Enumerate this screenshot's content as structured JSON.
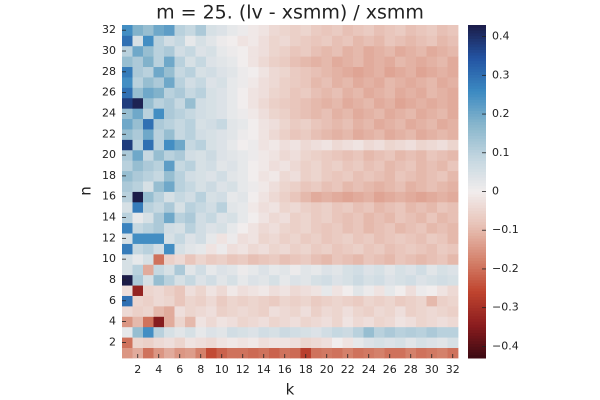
{
  "chart_data": {
    "type": "heatmap",
    "title": "m = 25. (lv - xsmm) / xsmm",
    "x_label": "k",
    "y_label": "n",
    "x": [
      1,
      2,
      3,
      4,
      5,
      6,
      7,
      8,
      9,
      10,
      11,
      12,
      13,
      14,
      15,
      16,
      17,
      18,
      19,
      20,
      21,
      22,
      23,
      24,
      25,
      26,
      27,
      28,
      29,
      30,
      31,
      32
    ],
    "y": [
      1,
      2,
      3,
      4,
      5,
      6,
      7,
      8,
      9,
      10,
      11,
      12,
      13,
      14,
      15,
      16,
      17,
      18,
      19,
      20,
      21,
      22,
      23,
      24,
      25,
      26,
      27,
      28,
      29,
      30,
      31,
      32
    ],
    "z": [
      [
        -0.15,
        -0.12,
        -0.2,
        -0.15,
        -0.12,
        -0.15,
        -0.14,
        -0.18,
        -0.25,
        -0.22,
        -0.2,
        -0.2,
        -0.21,
        -0.2,
        -0.22,
        -0.2,
        -0.21,
        -0.27,
        -0.2,
        -0.19,
        -0.2,
        -0.18,
        -0.2,
        -0.19,
        -0.18,
        -0.2,
        -0.2,
        -0.18,
        -0.2,
        -0.19,
        -0.18,
        -0.2
      ],
      [
        -0.2,
        -0.05,
        -0.06,
        -0.04,
        -0.03,
        -0.05,
        -0.02,
        -0.03,
        -0.04,
        -0.02,
        -0.01,
        -0.02,
        -0.01,
        -0.03,
        -0.02,
        -0.02,
        -0.03,
        -0.05,
        -0.04,
        -0.03,
        0.0,
        -0.02,
        0.02,
        0.04,
        0.05,
        0.04,
        0.05,
        0.03,
        0.05,
        0.04,
        0.03,
        0.05
      ],
      [
        0.02,
        0.15,
        0.25,
        0.1,
        0.05,
        0.03,
        0.05,
        0.02,
        0.04,
        0.03,
        0.06,
        0.05,
        0.04,
        0.06,
        0.05,
        0.07,
        0.06,
        0.05,
        0.04,
        0.06,
        0.08,
        0.07,
        0.1,
        0.15,
        0.1,
        0.12,
        0.1,
        0.11,
        0.1,
        0.12,
        0.1,
        0.1
      ],
      [
        -0.15,
        -0.1,
        -0.2,
        -0.35,
        -0.12,
        -0.05,
        -0.1,
        -0.02,
        -0.04,
        -0.02,
        -0.03,
        -0.05,
        -0.04,
        -0.03,
        -0.05,
        -0.04,
        -0.03,
        -0.05,
        -0.04,
        -0.03,
        -0.05,
        -0.02,
        -0.04,
        -0.03,
        -0.05,
        -0.04,
        -0.02,
        -0.03,
        -0.05,
        -0.04,
        -0.03,
        -0.04
      ],
      [
        -0.04,
        -0.06,
        -0.05,
        -0.1,
        -0.12,
        -0.03,
        -0.05,
        -0.04,
        -0.03,
        -0.06,
        -0.05,
        -0.04,
        -0.05,
        -0.06,
        -0.03,
        -0.04,
        -0.05,
        -0.03,
        -0.06,
        -0.04,
        -0.05,
        -0.03,
        -0.05,
        -0.06,
        -0.04,
        -0.05,
        -0.03,
        -0.06,
        -0.05,
        -0.04,
        -0.05,
        -0.06
      ],
      [
        0.3,
        -0.05,
        -0.06,
        -0.04,
        -0.05,
        -0.08,
        -0.05,
        -0.06,
        -0.04,
        -0.07,
        -0.05,
        -0.06,
        -0.05,
        -0.06,
        -0.07,
        -0.05,
        -0.06,
        -0.05,
        -0.07,
        -0.06,
        -0.05,
        -0.06,
        -0.07,
        -0.05,
        -0.06,
        -0.05,
        -0.07,
        -0.06,
        -0.05,
        -0.1,
        -0.06,
        -0.05
      ],
      [
        -0.03,
        -0.33,
        -0.05,
        -0.04,
        -0.06,
        -0.08,
        -0.03,
        -0.05,
        -0.02,
        -0.04,
        -0.01,
        -0.03,
        -0.02,
        -0.01,
        -0.03,
        -0.02,
        -0.04,
        -0.03,
        -0.02,
        0.02,
        -0.02,
        0.0,
        0.03,
        0.01,
        -0.02,
        0.02,
        0.0,
        -0.03,
        0.01,
        0.0,
        -0.02,
        -0.04
      ],
      [
        0.43,
        0.12,
        0.05,
        0.15,
        0.1,
        0.05,
        0.08,
        0.04,
        0.06,
        0.03,
        0.05,
        0.02,
        0.04,
        0.03,
        0.05,
        0.02,
        0.04,
        0.03,
        0.05,
        0.06,
        0.04,
        0.05,
        0.07,
        0.05,
        0.06,
        0.04,
        0.05,
        0.06,
        0.04,
        0.05,
        0.06,
        0.05
      ],
      [
        0.05,
        0.1,
        -0.12,
        0.08,
        0.05,
        0.12,
        0.03,
        0.06,
        0.02,
        0.04,
        0.03,
        0.01,
        0.02,
        0.04,
        0.02,
        0.03,
        0.01,
        0.03,
        0.02,
        0.04,
        0.03,
        0.05,
        0.06,
        0.04,
        0.05,
        0.03,
        0.05,
        0.04,
        0.06,
        0.03,
        0.05,
        0.04
      ],
      [
        0.05,
        0.02,
        0.05,
        -0.2,
        -0.06,
        -0.04,
        -0.08,
        -0.05,
        -0.07,
        -0.06,
        -0.08,
        -0.07,
        -0.09,
        -0.08,
        -0.07,
        -0.09,
        -0.08,
        -0.07,
        -0.09,
        -0.1,
        -0.08,
        -0.09,
        -0.1,
        -0.08,
        -0.09,
        -0.1,
        -0.08,
        -0.09,
        -0.1,
        -0.09,
        -0.08,
        -0.1
      ],
      [
        0.28,
        0.08,
        0.1,
        0.06,
        0.25,
        0.05,
        0.03,
        0.02,
        -0.02,
        0.01,
        -0.03,
        -0.02,
        -0.04,
        -0.03,
        -0.05,
        -0.04,
        -0.06,
        -0.05,
        -0.07,
        -0.06,
        -0.08,
        -0.07,
        -0.06,
        -0.08,
        -0.07,
        -0.09,
        -0.08,
        -0.07,
        -0.08,
        -0.09,
        -0.07,
        -0.08
      ],
      [
        0.05,
        0.25,
        0.25,
        0.25,
        0.05,
        0.08,
        0.04,
        0.06,
        0.02,
        -0.02,
        0.01,
        -0.03,
        -0.02,
        -0.05,
        -0.04,
        -0.06,
        -0.05,
        -0.07,
        -0.06,
        -0.08,
        -0.07,
        -0.06,
        -0.08,
        -0.07,
        -0.09,
        -0.08,
        -0.07,
        -0.08,
        -0.09,
        -0.07,
        -0.08,
        -0.1
      ],
      [
        0.27,
        0.08,
        0.1,
        0.12,
        0.06,
        0.05,
        0.1,
        0.06,
        0.04,
        0.05,
        0.02,
        0.0,
        -0.02,
        -0.04,
        -0.03,
        -0.05,
        -0.06,
        -0.05,
        -0.07,
        -0.08,
        -0.07,
        -0.09,
        -0.08,
        -0.1,
        -0.09,
        -0.08,
        -0.1,
        -0.09,
        -0.08,
        -0.1,
        -0.09,
        -0.1
      ],
      [
        0.1,
        0.02,
        0.05,
        0.12,
        0.2,
        0.1,
        0.12,
        0.06,
        0.08,
        0.04,
        0.05,
        0.02,
        0.0,
        -0.02,
        -0.04,
        -0.03,
        -0.06,
        -0.05,
        -0.07,
        -0.06,
        -0.08,
        -0.09,
        -0.08,
        -0.1,
        -0.09,
        -0.1,
        -0.08,
        -0.09,
        -0.1,
        -0.08,
        -0.1,
        -0.09
      ],
      [
        0.05,
        0.28,
        0.1,
        0.08,
        0.12,
        0.05,
        0.1,
        0.08,
        0.06,
        0.1,
        0.03,
        0.02,
        -0.01,
        -0.03,
        -0.02,
        -0.05,
        -0.04,
        -0.06,
        -0.07,
        -0.06,
        -0.08,
        -0.07,
        -0.09,
        -0.08,
        -0.1,
        -0.09,
        -0.08,
        -0.1,
        -0.09,
        -0.1,
        -0.08,
        -0.09
      ],
      [
        0.1,
        0.43,
        0.15,
        0.1,
        0.05,
        0.08,
        0.06,
        0.1,
        0.05,
        0.06,
        0.02,
        0.03,
        0.0,
        -0.02,
        -0.04,
        -0.06,
        -0.08,
        -0.1,
        -0.12,
        -0.11,
        -0.12,
        -0.13,
        -0.12,
        -0.11,
        -0.13,
        -0.12,
        -0.11,
        -0.12,
        -0.13,
        -0.12,
        -0.11,
        -0.12
      ],
      [
        0.12,
        0.1,
        0.05,
        0.15,
        0.2,
        0.1,
        0.08,
        0.05,
        0.07,
        0.04,
        0.05,
        0.02,
        0.01,
        -0.01,
        -0.03,
        -0.05,
        -0.06,
        -0.08,
        -0.07,
        -0.09,
        -0.08,
        -0.1,
        -0.09,
        -0.1,
        -0.11,
        -0.1,
        -0.09,
        -0.11,
        -0.1,
        -0.09,
        -0.1,
        -0.11
      ],
      [
        0.15,
        0.12,
        0.1,
        0.08,
        0.15,
        0.1,
        0.06,
        0.05,
        0.04,
        0.06,
        0.03,
        0.02,
        0.0,
        -0.02,
        -0.01,
        -0.04,
        -0.03,
        -0.06,
        -0.05,
        -0.07,
        -0.08,
        -0.07,
        -0.09,
        -0.08,
        -0.09,
        -0.1,
        -0.08,
        -0.09,
        -0.1,
        -0.09,
        -0.08,
        -0.1
      ],
      [
        0.1,
        0.15,
        0.12,
        0.1,
        0.22,
        0.08,
        0.1,
        0.05,
        0.06,
        0.03,
        0.04,
        0.02,
        0.0,
        -0.01,
        -0.03,
        -0.02,
        -0.04,
        -0.06,
        -0.05,
        -0.07,
        -0.06,
        -0.08,
        -0.07,
        -0.09,
        -0.08,
        -0.1,
        -0.09,
        -0.08,
        -0.1,
        -0.09,
        -0.1,
        -0.08
      ],
      [
        0.12,
        0.2,
        0.08,
        0.15,
        0.1,
        0.12,
        0.06,
        0.05,
        0.07,
        0.04,
        0.03,
        0.02,
        0.01,
        -0.01,
        -0.02,
        -0.04,
        -0.03,
        -0.05,
        -0.06,
        -0.07,
        -0.08,
        -0.09,
        -0.08,
        -0.1,
        -0.09,
        -0.08,
        -0.1,
        -0.09,
        -0.1,
        -0.08,
        -0.09,
        -0.1
      ],
      [
        0.38,
        0.1,
        0.3,
        0.1,
        0.25,
        0.2,
        0.08,
        0.1,
        0.05,
        0.04,
        0.02,
        0.0,
        0.01,
        -0.02,
        -0.01,
        -0.03,
        -0.02,
        -0.04,
        -0.03,
        -0.02,
        -0.04,
        -0.03,
        -0.02,
        -0.04,
        -0.03,
        -0.05,
        -0.04,
        -0.03,
        -0.05,
        -0.04,
        -0.03,
        -0.05
      ],
      [
        0.15,
        0.12,
        0.2,
        0.1,
        0.15,
        0.08,
        0.1,
        0.06,
        0.05,
        0.04,
        0.03,
        0.01,
        0.0,
        -0.02,
        -0.04,
        -0.06,
        -0.08,
        -0.07,
        -0.09,
        -0.1,
        -0.11,
        -0.1,
        -0.12,
        -0.11,
        -0.1,
        -0.12,
        -0.11,
        -0.1,
        -0.12,
        -0.11,
        -0.1,
        -0.11
      ],
      [
        0.2,
        0.15,
        0.3,
        0.12,
        0.1,
        0.08,
        0.1,
        0.05,
        0.06,
        0.08,
        0.03,
        0.02,
        0.0,
        -0.02,
        -0.03,
        -0.05,
        -0.07,
        -0.06,
        -0.08,
        -0.09,
        -0.1,
        -0.09,
        -0.11,
        -0.1,
        -0.12,
        -0.11,
        -0.1,
        -0.12,
        -0.11,
        -0.1,
        -0.12,
        -0.11
      ],
      [
        0.15,
        0.2,
        0.1,
        0.25,
        0.12,
        0.1,
        0.08,
        0.06,
        0.05,
        0.04,
        0.02,
        0.01,
        -0.01,
        -0.03,
        -0.05,
        -0.06,
        -0.08,
        -0.09,
        -0.1,
        -0.09,
        -0.11,
        -0.1,
        -0.12,
        -0.11,
        -0.1,
        -0.12,
        -0.11,
        -0.1,
        -0.12,
        -0.11,
        -0.1,
        -0.12
      ],
      [
        0.38,
        0.42,
        0.15,
        0.1,
        0.12,
        0.08,
        0.15,
        0.06,
        0.05,
        0.04,
        0.02,
        0.0,
        -0.02,
        -0.04,
        -0.06,
        -0.07,
        -0.08,
        -0.09,
        -0.1,
        -0.11,
        -0.1,
        -0.12,
        -0.11,
        -0.1,
        -0.12,
        -0.11,
        -0.13,
        -0.12,
        -0.11,
        -0.12,
        -0.11,
        -0.12
      ],
      [
        0.3,
        0.15,
        0.2,
        0.18,
        0.1,
        0.12,
        0.08,
        0.1,
        0.05,
        0.04,
        0.02,
        0.0,
        -0.02,
        -0.03,
        -0.05,
        -0.06,
        -0.08,
        -0.07,
        -0.09,
        -0.1,
        -0.09,
        -0.11,
        -0.1,
        -0.12,
        -0.11,
        -0.1,
        -0.12,
        -0.11,
        -0.12,
        -0.1,
        -0.11,
        -0.12
      ],
      [
        0.25,
        0.1,
        0.15,
        0.12,
        0.2,
        0.1,
        0.06,
        0.08,
        0.04,
        0.05,
        0.02,
        0.01,
        -0.01,
        -0.03,
        -0.04,
        -0.06,
        -0.07,
        -0.08,
        -0.1,
        -0.09,
        -0.11,
        -0.1,
        -0.12,
        -0.11,
        -0.12,
        -0.1,
        -0.11,
        -0.12,
        -0.11,
        -0.1,
        -0.12,
        -0.11
      ],
      [
        0.28,
        0.12,
        0.1,
        0.2,
        0.15,
        0.08,
        0.1,
        0.05,
        0.06,
        0.04,
        0.03,
        0.01,
        0.0,
        -0.02,
        -0.04,
        -0.05,
        -0.07,
        -0.08,
        -0.09,
        -0.1,
        -0.11,
        -0.12,
        -0.13,
        -0.12,
        -0.11,
        -0.13,
        -0.12,
        -0.11,
        -0.13,
        -0.12,
        -0.11,
        -0.12
      ],
      [
        0.15,
        0.12,
        0.18,
        0.1,
        0.2,
        0.1,
        0.05,
        0.08,
        0.04,
        0.03,
        0.02,
        0.0,
        -0.02,
        -0.04,
        -0.06,
        -0.07,
        -0.09,
        -0.1,
        -0.11,
        -0.1,
        -0.12,
        -0.11,
        -0.1,
        -0.12,
        -0.11,
        -0.12,
        -0.1,
        -0.11,
        -0.12,
        -0.11,
        -0.1,
        -0.12
      ],
      [
        0.1,
        0.2,
        0.15,
        0.1,
        0.12,
        0.06,
        0.08,
        0.04,
        0.05,
        0.02,
        0.01,
        0.0,
        -0.02,
        -0.03,
        -0.05,
        -0.06,
        -0.08,
        -0.07,
        -0.09,
        -0.1,
        -0.09,
        -0.11,
        -0.1,
        -0.12,
        -0.11,
        -0.1,
        -0.12,
        -0.11,
        -0.1,
        -0.12,
        -0.11,
        -0.1
      ],
      [
        0.3,
        0.05,
        0.25,
        0.1,
        0.06,
        0.08,
        0.02,
        0.05,
        0.03,
        0.01,
        0.0,
        -0.02,
        -0.01,
        -0.03,
        -0.05,
        -0.04,
        -0.06,
        -0.07,
        -0.08,
        -0.07,
        -0.09,
        -0.08,
        -0.1,
        -0.09,
        -0.1,
        -0.08,
        -0.09,
        -0.1,
        -0.09,
        -0.08,
        -0.1,
        -0.09
      ],
      [
        0.25,
        0.18,
        0.15,
        0.2,
        0.22,
        0.1,
        0.08,
        0.12,
        0.05,
        0.04,
        0.02,
        0.01,
        -0.01,
        -0.02,
        -0.04,
        -0.05,
        -0.06,
        -0.05,
        -0.07,
        -0.08,
        -0.07,
        -0.09,
        -0.08,
        -0.07,
        -0.09,
        -0.08,
        -0.07,
        -0.09,
        -0.08,
        -0.07,
        -0.09,
        -0.08
      ]
    ],
    "xlim": [
      0.5,
      32.5
    ],
    "ylim": [
      0.5,
      32.5
    ],
    "xticks": [
      2,
      4,
      6,
      8,
      10,
      12,
      14,
      16,
      18,
      20,
      22,
      24,
      26,
      28,
      30,
      32
    ],
    "yticks": [
      2,
      4,
      6,
      8,
      10,
      12,
      14,
      16,
      18,
      20,
      22,
      24,
      26,
      28,
      30,
      32
    ],
    "clim": [
      -0.43,
      0.43
    ],
    "cticks": [
      {
        "value": -0.4,
        "label": "−0.4"
      },
      {
        "value": -0.3,
        "label": "−0.3"
      },
      {
        "value": -0.2,
        "label": "−0.2"
      },
      {
        "value": -0.1,
        "label": "−0.1"
      },
      0,
      0.1,
      0.2,
      0.3,
      0.4
    ],
    "colormap": [
      "#3c0912",
      "#8c1d1f",
      "#c0452f",
      "#d68771",
      "#e8c3b8",
      "#f1eded",
      "#c3d6e0",
      "#88b6cc",
      "#3c8ac2",
      "#2354a3",
      "#1c1c48"
    ]
  }
}
